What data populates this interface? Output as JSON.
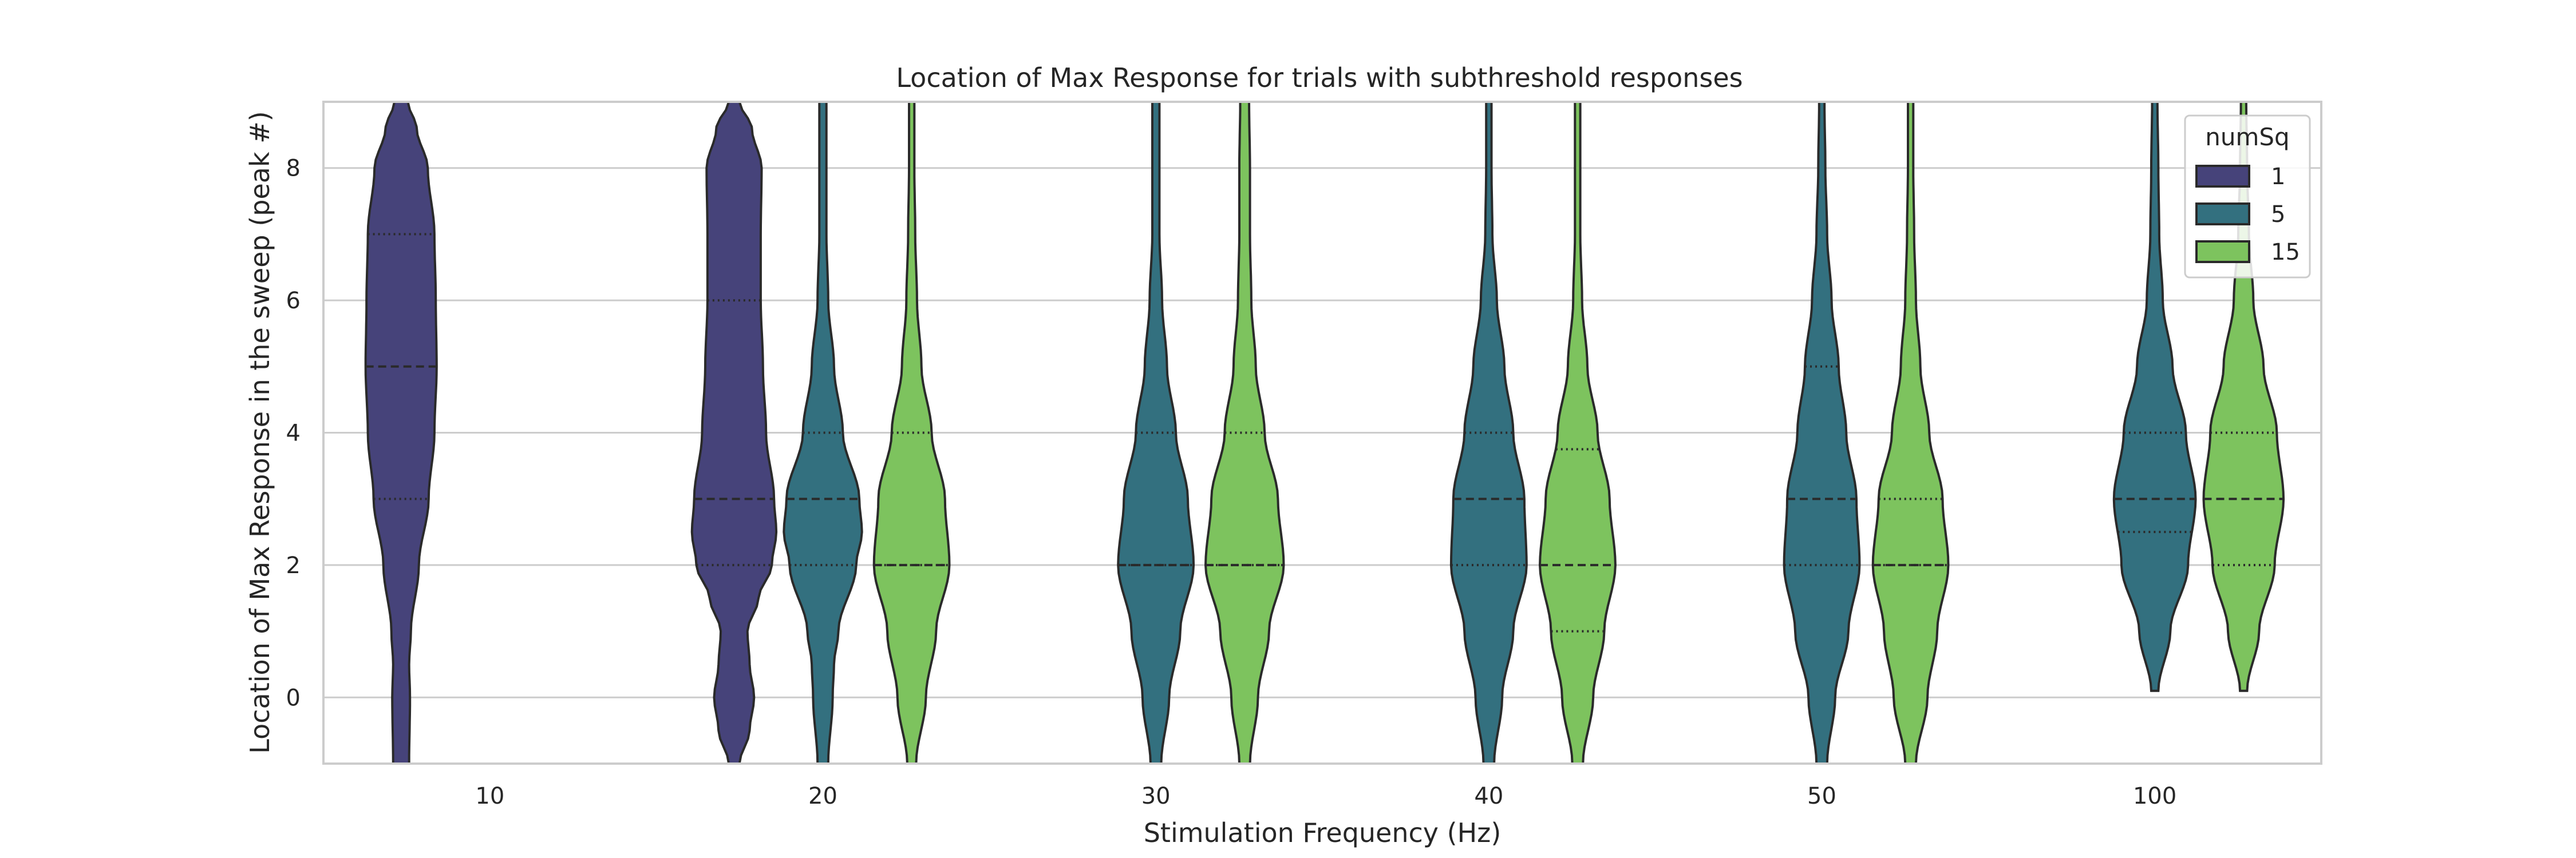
{
  "chart_data": {
    "type": "violin",
    "title": "Location of Max Response for trials with subthreshold responses",
    "xlabel": "Stimulation Frequency (Hz)",
    "ylabel": "Location of Max Response in the sweep (peak #)",
    "categories": [
      "10",
      "20",
      "30",
      "40",
      "50",
      "100"
    ],
    "ylim": [
      -1,
      9
    ],
    "yticks": [
      0,
      2,
      4,
      6,
      8
    ],
    "grid": true,
    "legend": {
      "title": "numSq",
      "placement": "top-right"
    },
    "series": [
      {
        "name": "1",
        "color": "#46437a",
        "violins": [
          {
            "category": "10",
            "q1": 3,
            "median": 5,
            "q3": 7,
            "ymin": -1,
            "ymax": 9,
            "profile": [
              [
                -1,
                0.18
              ],
              [
                0,
                0.2
              ],
              [
                0.5,
                0.18
              ],
              [
                1,
                0.22
              ],
              [
                2,
                0.4
              ],
              [
                3,
                0.62
              ],
              [
                4,
                0.75
              ],
              [
                5,
                0.8
              ],
              [
                6,
                0.78
              ],
              [
                7,
                0.75
              ],
              [
                8,
                0.6
              ],
              [
                8.6,
                0.35
              ],
              [
                9,
                0.15
              ]
            ]
          },
          {
            "category": "20",
            "q1": 2,
            "median": 3,
            "q3": 6,
            "ymin": -1,
            "ymax": 9,
            "profile": [
              [
                -1,
                0.12
              ],
              [
                -0.5,
                0.35
              ],
              [
                0,
                0.45
              ],
              [
                0.5,
                0.35
              ],
              [
                1,
                0.3
              ],
              [
                1.5,
                0.55
              ],
              [
                2,
                0.85
              ],
              [
                2.5,
                0.95
              ],
              [
                3,
                0.9
              ],
              [
                4,
                0.72
              ],
              [
                5,
                0.65
              ],
              [
                6,
                0.6
              ],
              [
                7,
                0.6
              ],
              [
                8,
                0.62
              ],
              [
                8.6,
                0.4
              ],
              [
                9,
                0.12
              ]
            ]
          }
        ]
      },
      {
        "name": "5",
        "color": "#33707f",
        "violins": [
          {
            "category": "20",
            "q1": 2,
            "median": 3,
            "q3": 4,
            "ymin": -1,
            "ymax": 9,
            "profile": [
              [
                -1,
                0.12
              ],
              [
                0,
                0.22
              ],
              [
                0.5,
                0.25
              ],
              [
                1,
                0.35
              ],
              [
                2,
                0.75
              ],
              [
                2.5,
                0.88
              ],
              [
                3,
                0.82
              ],
              [
                4,
                0.45
              ],
              [
                5,
                0.25
              ],
              [
                6,
                0.12
              ],
              [
                7,
                0.08
              ],
              [
                8,
                0.08
              ],
              [
                9,
                0.08
              ]
            ]
          },
          {
            "category": "30",
            "q1": 2,
            "median": 2,
            "q3": 4,
            "ymin": -1,
            "ymax": 9,
            "profile": [
              [
                -1,
                0.12
              ],
              [
                0,
                0.3
              ],
              [
                1,
                0.55
              ],
              [
                2,
                0.85
              ],
              [
                3,
                0.72
              ],
              [
                4,
                0.45
              ],
              [
                5,
                0.25
              ],
              [
                6,
                0.14
              ],
              [
                7,
                0.08
              ],
              [
                8,
                0.08
              ],
              [
                9,
                0.08
              ]
            ]
          },
          {
            "category": "40",
            "q1": 2,
            "median": 3,
            "q3": 4,
            "ymin": -1,
            "ymax": 9,
            "profile": [
              [
                -1,
                0.12
              ],
              [
                0,
                0.3
              ],
              [
                1,
                0.55
              ],
              [
                2,
                0.85
              ],
              [
                3,
                0.8
              ],
              [
                4,
                0.55
              ],
              [
                5,
                0.35
              ],
              [
                6,
                0.18
              ],
              [
                7,
                0.08
              ],
              [
                8,
                0.06
              ],
              [
                9,
                0.06
              ]
            ]
          },
          {
            "category": "50",
            "q1": 2,
            "median": 3,
            "q3": 5,
            "ymin": -1,
            "ymax": 9,
            "profile": [
              [
                -1,
                0.12
              ],
              [
                0,
                0.3
              ],
              [
                1,
                0.6
              ],
              [
                2,
                0.85
              ],
              [
                3,
                0.78
              ],
              [
                4,
                0.55
              ],
              [
                5,
                0.38
              ],
              [
                6,
                0.22
              ],
              [
                7,
                0.12
              ],
              [
                8,
                0.08
              ],
              [
                9,
                0.06
              ]
            ]
          },
          {
            "category": "100",
            "q1": 2.5,
            "median": 3,
            "q3": 4,
            "ymin": 0.1,
            "ymax": 9,
            "profile": [
              [
                0.1,
                0.08
              ],
              [
                1,
                0.35
              ],
              [
                2,
                0.75
              ],
              [
                3,
                0.92
              ],
              [
                4,
                0.7
              ],
              [
                5,
                0.4
              ],
              [
                6,
                0.18
              ],
              [
                7,
                0.1
              ],
              [
                8,
                0.08
              ],
              [
                9,
                0.06
              ]
            ]
          }
        ]
      },
      {
        "name": "15",
        "color": "#7dc35e",
        "violins": [
          {
            "category": "20",
            "q1": 2,
            "median": 2,
            "q3": 4,
            "ymin": -1,
            "ymax": 9,
            "profile": [
              [
                -1,
                0.1
              ],
              [
                0,
                0.32
              ],
              [
                1,
                0.55
              ],
              [
                2,
                0.85
              ],
              [
                3,
                0.75
              ],
              [
                4,
                0.45
              ],
              [
                5,
                0.22
              ],
              [
                6,
                0.12
              ],
              [
                7,
                0.08
              ],
              [
                8,
                0.06
              ],
              [
                9,
                0.06
              ]
            ]
          },
          {
            "category": "30",
            "q1": 2,
            "median": 2,
            "q3": 4,
            "ymin": -1,
            "ymax": 9,
            "profile": [
              [
                -1,
                0.12
              ],
              [
                0,
                0.3
              ],
              [
                1,
                0.55
              ],
              [
                2,
                0.88
              ],
              [
                3,
                0.75
              ],
              [
                4,
                0.45
              ],
              [
                5,
                0.25
              ],
              [
                6,
                0.15
              ],
              [
                7,
                0.12
              ],
              [
                8,
                0.12
              ],
              [
                9,
                0.1
              ]
            ]
          },
          {
            "category": "40",
            "q1": 1,
            "median": 2,
            "q3": 3.75,
            "ymin": -1,
            "ymax": 9,
            "profile": [
              [
                -1,
                0.12
              ],
              [
                0,
                0.35
              ],
              [
                1,
                0.6
              ],
              [
                2,
                0.85
              ],
              [
                3,
                0.72
              ],
              [
                4,
                0.45
              ],
              [
                5,
                0.22
              ],
              [
                6,
                0.1
              ],
              [
                7,
                0.06
              ],
              [
                8,
                0.06
              ],
              [
                9,
                0.06
              ]
            ]
          },
          {
            "category": "50",
            "q1": 2,
            "median": 2,
            "q3": 3,
            "ymin": -1,
            "ymax": 9,
            "profile": [
              [
                -1,
                0.12
              ],
              [
                0,
                0.38
              ],
              [
                1,
                0.6
              ],
              [
                2,
                0.85
              ],
              [
                3,
                0.72
              ],
              [
                4,
                0.42
              ],
              [
                5,
                0.22
              ],
              [
                6,
                0.12
              ],
              [
                7,
                0.08
              ],
              [
                8,
                0.06
              ],
              [
                9,
                0.06
              ]
            ]
          },
          {
            "category": "100",
            "q1": 2,
            "median": 3,
            "q3": 4,
            "ymin": 0.1,
            "ymax": 9,
            "profile": [
              [
                0.1,
                0.08
              ],
              [
                1,
                0.35
              ],
              [
                2,
                0.7
              ],
              [
                3,
                0.9
              ],
              [
                4,
                0.75
              ],
              [
                5,
                0.45
              ],
              [
                6,
                0.22
              ],
              [
                7,
                0.12
              ],
              [
                8,
                0.08
              ],
              [
                9,
                0.06
              ]
            ]
          }
        ]
      }
    ]
  }
}
